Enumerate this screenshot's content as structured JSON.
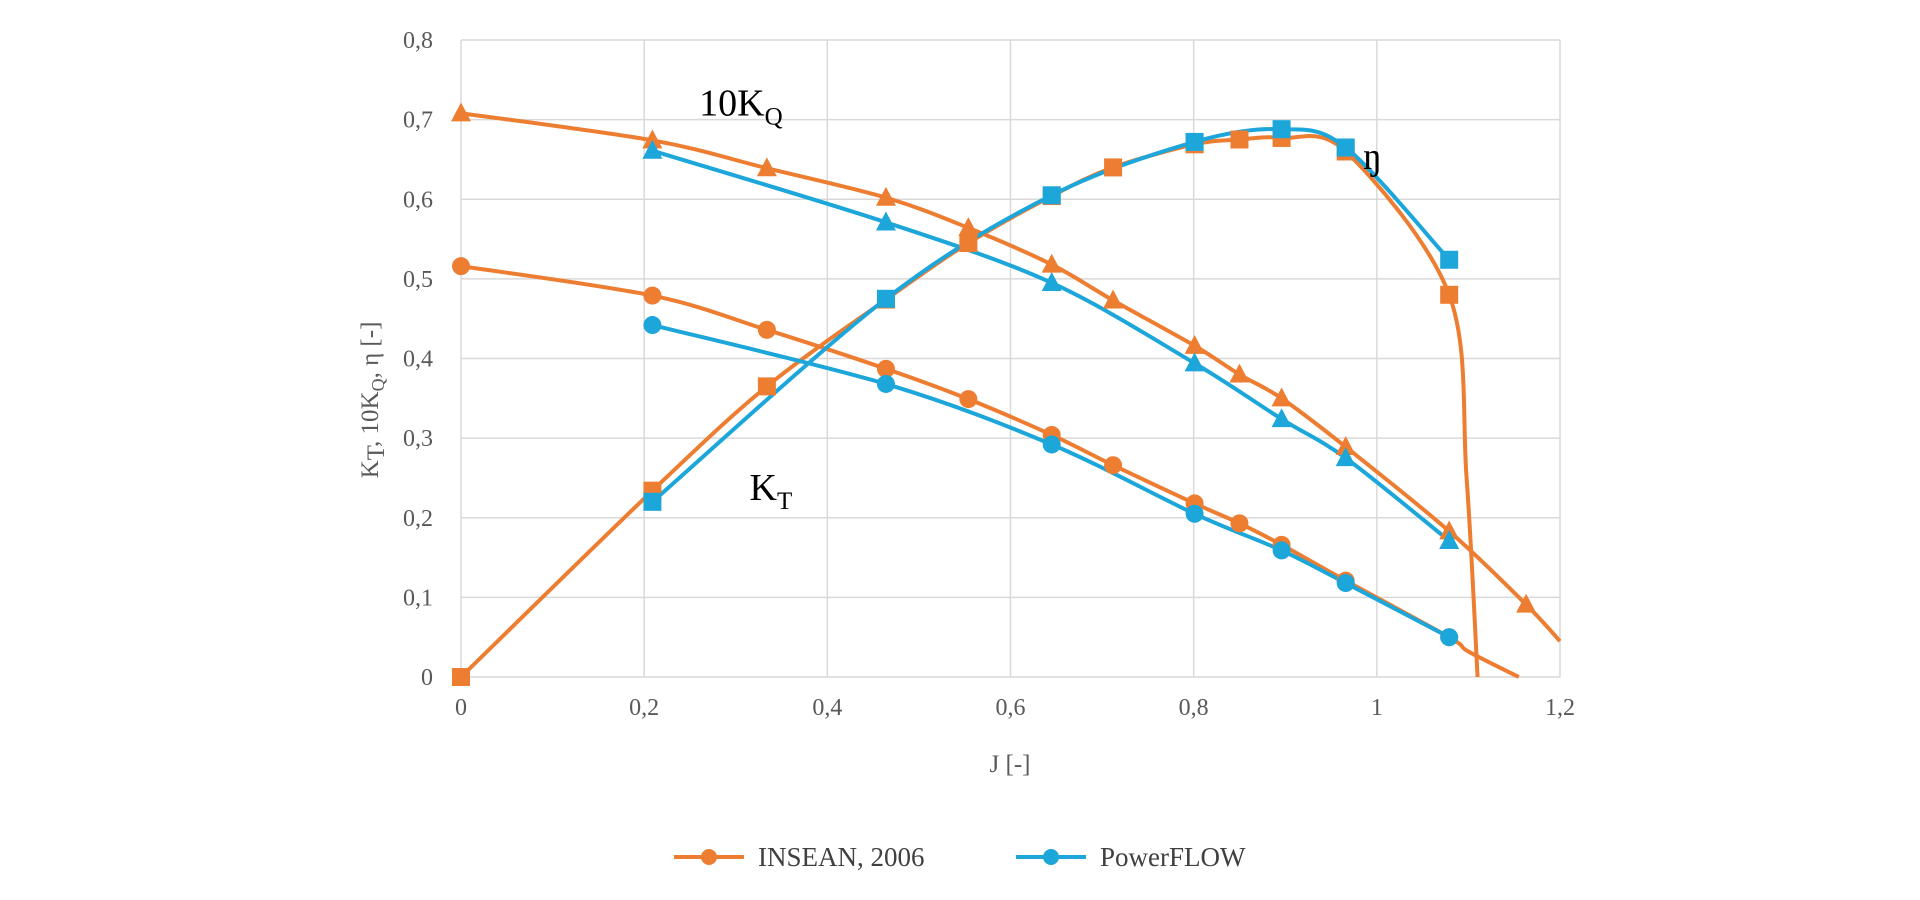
{
  "chart_data": {
    "type": "line",
    "xlabel": "J [-]",
    "ylabel": {
      "main": "K",
      "sub1": "T",
      "mid": ", 10K",
      "sub2": "Q",
      "tail": ", η [-]"
    },
    "xlim": [
      0,
      1.2
    ],
    "ylim": [
      0,
      0.8
    ],
    "x_ticks": [
      "0",
      "0,2",
      "0,4",
      "0,6",
      "0,8",
      "1",
      "1,2"
    ],
    "y_ticks": [
      "0",
      "0,1",
      "0,2",
      "0,3",
      "0,4",
      "0,5",
      "0,6",
      "0,7",
      "0,8"
    ],
    "grid": true,
    "legend_position": "bottom",
    "annotations": [
      {
        "id": "kq",
        "base": "10K",
        "sub": "Q",
        "x": 0.26,
        "y": 0.705
      },
      {
        "id": "kt",
        "base": "K",
        "sub": "T",
        "x": 0.315,
        "y": 0.222
      },
      {
        "id": "eta",
        "base": "ŋ",
        "sub": "",
        "x": 0.985,
        "y": 0.638
      }
    ],
    "series": [
      {
        "name": "INSEAN, 2006",
        "color": "#ED7D31",
        "marker": "circle",
        "group": "KT",
        "x": [
          0,
          0.209,
          0.334,
          0.464,
          0.554,
          0.645,
          0.712,
          0.801,
          0.85,
          0.896,
          0.966,
          1.079
        ],
        "y": [
          0.516,
          0.479,
          0.436,
          0.387,
          0.349,
          0.304,
          0.266,
          0.218,
          0.193,
          0.166,
          0.121,
          0.05
        ],
        "curve_tail": [
          [
            1.1,
            0.032
          ],
          [
            1.155,
            0
          ]
        ]
      },
      {
        "name": "INSEAN, 2006",
        "color": "#ED7D31",
        "marker": "triangle",
        "group": "10KQ",
        "x": [
          0,
          0.209,
          0.334,
          0.464,
          0.554,
          0.645,
          0.712,
          0.801,
          0.85,
          0.896,
          0.966,
          1.079,
          1.163
        ],
        "y": [
          0.708,
          0.674,
          0.639,
          0.602,
          0.564,
          0.518,
          0.473,
          0.416,
          0.38,
          0.35,
          0.289,
          0.183,
          0.091
        ],
        "curve_tail": [
          [
            1.2,
            0.045
          ]
        ]
      },
      {
        "name": "INSEAN, 2006",
        "color": "#ED7D31",
        "marker": "square",
        "group": "eta",
        "x": [
          0,
          0.209,
          0.334,
          0.464,
          0.554,
          0.645,
          0.712,
          0.801,
          0.85,
          0.896,
          0.966,
          1.079
        ],
        "y": [
          0,
          0.234,
          0.365,
          0.474,
          0.545,
          0.604,
          0.64,
          0.669,
          0.675,
          0.677,
          0.66,
          0.48
        ],
        "curve_tail": [
          [
            1.098,
            0.25
          ],
          [
            1.11,
            0
          ]
        ]
      },
      {
        "name": "PowerFLOW",
        "color": "#1CA6DA",
        "marker": "circle",
        "group": "KT",
        "x": [
          0.209,
          0.464,
          0.645,
          0.801,
          0.896,
          0.966,
          1.079
        ],
        "y": [
          0.442,
          0.368,
          0.292,
          0.205,
          0.159,
          0.118,
          0.05
        ]
      },
      {
        "name": "PowerFLOW",
        "color": "#1CA6DA",
        "marker": "triangle",
        "group": "10KQ",
        "x": [
          0.209,
          0.464,
          0.645,
          0.801,
          0.896,
          0.966,
          1.079
        ],
        "y": [
          0.661,
          0.571,
          0.495,
          0.394,
          0.324,
          0.275,
          0.171
        ]
      },
      {
        "name": "PowerFLOW",
        "color": "#1CA6DA",
        "marker": "square",
        "group": "eta",
        "x": [
          0.209,
          0.464,
          0.645,
          0.801,
          0.896,
          0.966,
          1.079
        ],
        "y": [
          0.22,
          0.475,
          0.605,
          0.672,
          0.688,
          0.665,
          0.524
        ]
      }
    ],
    "legend": [
      {
        "label": "INSEAN, 2006",
        "color": "#ED7D31",
        "marker": "circle"
      },
      {
        "label": "PowerFLOW",
        "color": "#1CA6DA",
        "marker": "circle"
      }
    ]
  }
}
